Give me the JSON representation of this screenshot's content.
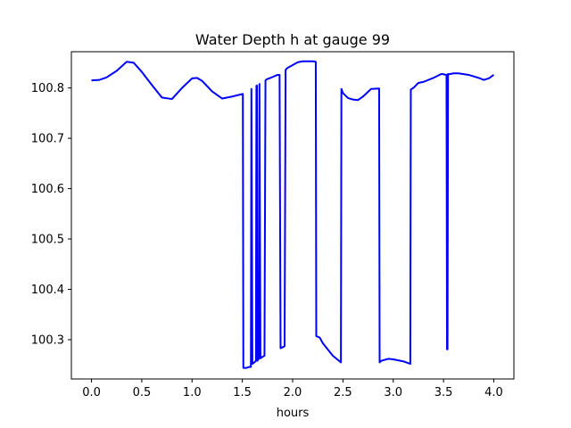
{
  "chart_data": {
    "type": "line",
    "title": "Water Depth h at gauge 99",
    "xlabel": "hours",
    "ylabel": "",
    "xlim": [
      -0.2,
      4.2
    ],
    "ylim": [
      100.222,
      100.872
    ],
    "xticks": [
      0.0,
      0.5,
      1.0,
      1.5,
      2.0,
      2.5,
      3.0,
      3.5,
      4.0
    ],
    "xtick_labels": [
      "0.0",
      "0.5",
      "1.0",
      "1.5",
      "2.0",
      "2.5",
      "3.0",
      "3.5",
      "4.0"
    ],
    "yticks": [
      100.3,
      100.4,
      100.5,
      100.6,
      100.7,
      100.8
    ],
    "ytick_labels": [
      "100.3",
      "100.4",
      "100.5",
      "100.6",
      "100.7",
      "100.8"
    ],
    "grid": false,
    "series": [
      {
        "color": "#0000ff",
        "x": [
          0.0,
          0.08,
          0.15,
          0.25,
          0.35,
          0.42,
          0.5,
          0.6,
          0.7,
          0.8,
          0.9,
          1.0,
          1.05,
          1.1,
          1.2,
          1.3,
          1.4,
          1.5,
          1.505,
          1.51,
          1.54,
          1.57,
          1.585,
          1.59,
          1.6,
          1.62,
          1.635,
          1.64,
          1.645,
          1.65,
          1.66,
          1.665,
          1.67,
          1.68,
          1.7,
          1.72,
          1.73,
          1.74,
          1.78,
          1.85,
          1.87,
          1.88,
          1.92,
          1.93,
          1.95,
          2.05,
          2.1,
          2.2,
          2.23,
          2.235,
          2.27,
          2.3,
          2.4,
          2.48,
          2.485,
          2.5,
          2.55,
          2.6,
          2.65,
          2.7,
          2.78,
          2.86,
          2.865,
          2.88,
          2.95,
          3.0,
          3.1,
          3.17,
          3.175,
          3.2,
          3.25,
          3.3,
          3.4,
          3.48,
          3.53,
          3.535,
          3.54,
          3.545,
          3.55,
          3.6,
          3.65,
          3.75,
          3.85,
          3.9,
          3.95,
          4.0
        ],
        "y": [
          100.815,
          100.816,
          100.821,
          100.834,
          100.852,
          100.85,
          100.832,
          100.806,
          100.781,
          100.778,
          100.8,
          100.819,
          100.82,
          100.814,
          100.793,
          100.779,
          100.783,
          100.788,
          100.788,
          100.244,
          100.244,
          100.246,
          100.246,
          100.798,
          100.252,
          100.255,
          100.258,
          100.804,
          100.805,
          100.258,
          100.262,
          100.262,
          100.808,
          100.263,
          100.266,
          100.268,
          100.815,
          100.817,
          100.82,
          100.826,
          100.826,
          100.283,
          100.287,
          100.836,
          100.84,
          100.851,
          100.853,
          100.853,
          100.852,
          100.307,
          100.304,
          100.293,
          100.268,
          100.255,
          100.798,
          100.79,
          100.78,
          100.777,
          100.776,
          100.783,
          100.798,
          100.799,
          100.255,
          100.258,
          100.262,
          100.261,
          100.257,
          100.252,
          100.797,
          100.8,
          100.81,
          100.812,
          100.82,
          100.828,
          100.826,
          100.281,
          100.281,
          100.828,
          100.827,
          100.829,
          100.829,
          100.826,
          100.82,
          100.816,
          100.819,
          100.826
        ]
      }
    ]
  }
}
